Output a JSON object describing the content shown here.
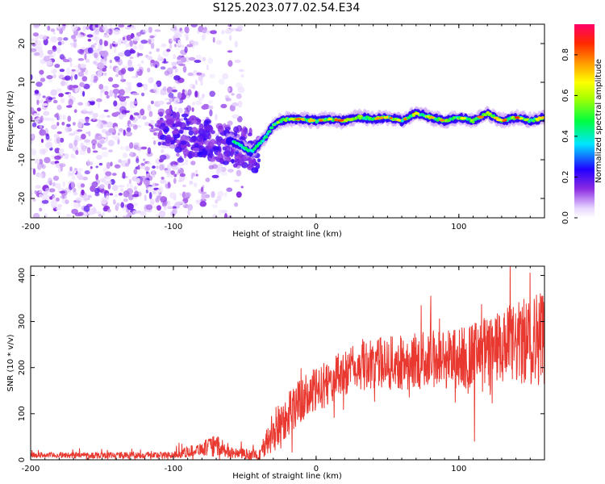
{
  "title": "S125.2023.077.02.54.E34",
  "chart_data": [
    {
      "type": "heatmap",
      "xlabel": "Height of straight line (km)",
      "ylabel": "Frequency (Hz)",
      "xlim": [
        -200,
        160
      ],
      "ylim": [
        -25,
        25
      ],
      "xticks": [
        -200,
        -100,
        0,
        100
      ],
      "yticks": [
        -20,
        -10,
        0,
        10,
        20
      ],
      "colorbar": {
        "label": "Normalized spectral amplitude",
        "range": [
          0,
          0.95
        ],
        "ticks": [
          0.0,
          0.2,
          0.4,
          0.6,
          0.8
        ]
      },
      "ridge": {
        "x": [
          -60,
          -55,
          -50,
          -45,
          -40,
          -35,
          -30,
          -25,
          -20,
          -10,
          0,
          10,
          20,
          30,
          40,
          50,
          60,
          70,
          80,
          90,
          100,
          110,
          120,
          130,
          140,
          150,
          160
        ],
        "y": [
          -5,
          -6,
          -7,
          -8,
          -6,
          -4,
          -1,
          0,
          0.5,
          0.5,
          0,
          0.5,
          0,
          1,
          0.5,
          1,
          0,
          2,
          1,
          0,
          1,
          0,
          2,
          0,
          1,
          0,
          1
        ]
      }
    },
    {
      "type": "line",
      "xlabel": "Height of straight line (km)",
      "ylabel": "SNR (10 * v/v)",
      "xlim": [
        -200,
        160
      ],
      "ylim": [
        0,
        420
      ],
      "xticks": [
        -200,
        -100,
        0,
        100
      ],
      "yticks": [
        0,
        100,
        200,
        300,
        400
      ],
      "series": [
        {
          "color": "#e8382f",
          "envelope": {
            "x": [
              -200,
              -100,
              -80,
              -70,
              -60,
              -40,
              -30,
              -20,
              -10,
              0,
              20,
              40,
              60,
              80,
              100,
              120,
              140,
              160
            ],
            "mean": [
              10,
              10,
              25,
              30,
              15,
              10,
              60,
              100,
              130,
              150,
              190,
              210,
              210,
              220,
              220,
              230,
              250,
              270
            ],
            "spread": [
              6,
              8,
              15,
              25,
              12,
              12,
              50,
              50,
              50,
              50,
              50,
              55,
              60,
              65,
              70,
              80,
              90,
              110
            ]
          }
        }
      ]
    }
  ]
}
